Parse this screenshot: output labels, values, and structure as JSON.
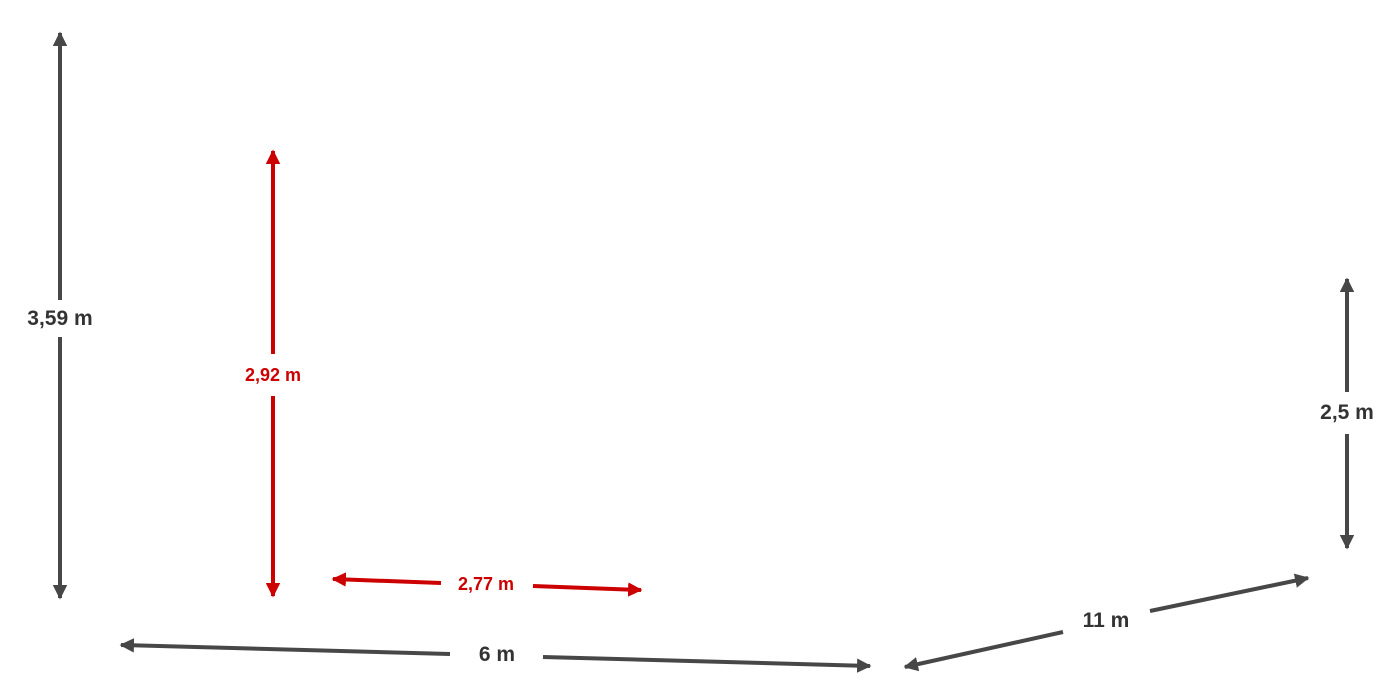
{
  "colors": {
    "dark": "#474747",
    "red": "#cc0000"
  },
  "dimensions": {
    "left_height": "3,59 m",
    "inner_height": "2,92 m",
    "inner_width": "2,77 m",
    "bottom_front": "6 m",
    "bottom_side": "11 m",
    "right_height": "2,5 m"
  }
}
